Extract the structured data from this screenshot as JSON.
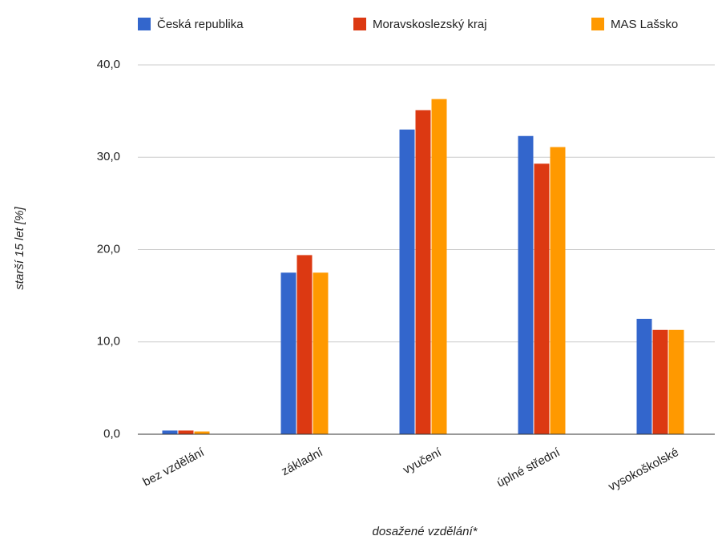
{
  "chart_data": {
    "type": "bar",
    "categories": [
      "bez vzdělání",
      "základní",
      "vyučení",
      "úplné střední",
      "vysokoškolské"
    ],
    "series": [
      {
        "name": "Česká republika",
        "color": "#3366cc",
        "values": [
          0.4,
          17.5,
          33.0,
          32.3,
          12.5
        ]
      },
      {
        "name": "Moravskoslezský kraj",
        "color": "#dc3912",
        "values": [
          0.4,
          19.4,
          35.1,
          29.3,
          11.3
        ]
      },
      {
        "name": "MAS Lašsko",
        "color": "#ff9900",
        "values": [
          0.3,
          17.5,
          36.3,
          31.1,
          11.3
        ]
      }
    ],
    "xlabel": "dosažené vzdělání*",
    "ylabel": "starší 15 let [%]",
    "ylim": [
      0,
      40
    ],
    "yticks": [
      {
        "value": 0,
        "label": "0,0"
      },
      {
        "value": 10,
        "label": "10,0"
      },
      {
        "value": 20,
        "label": "20,0"
      },
      {
        "value": 30,
        "label": "30,0"
      },
      {
        "value": 40,
        "label": "40,0"
      }
    ],
    "grid": true,
    "legend": "top"
  }
}
